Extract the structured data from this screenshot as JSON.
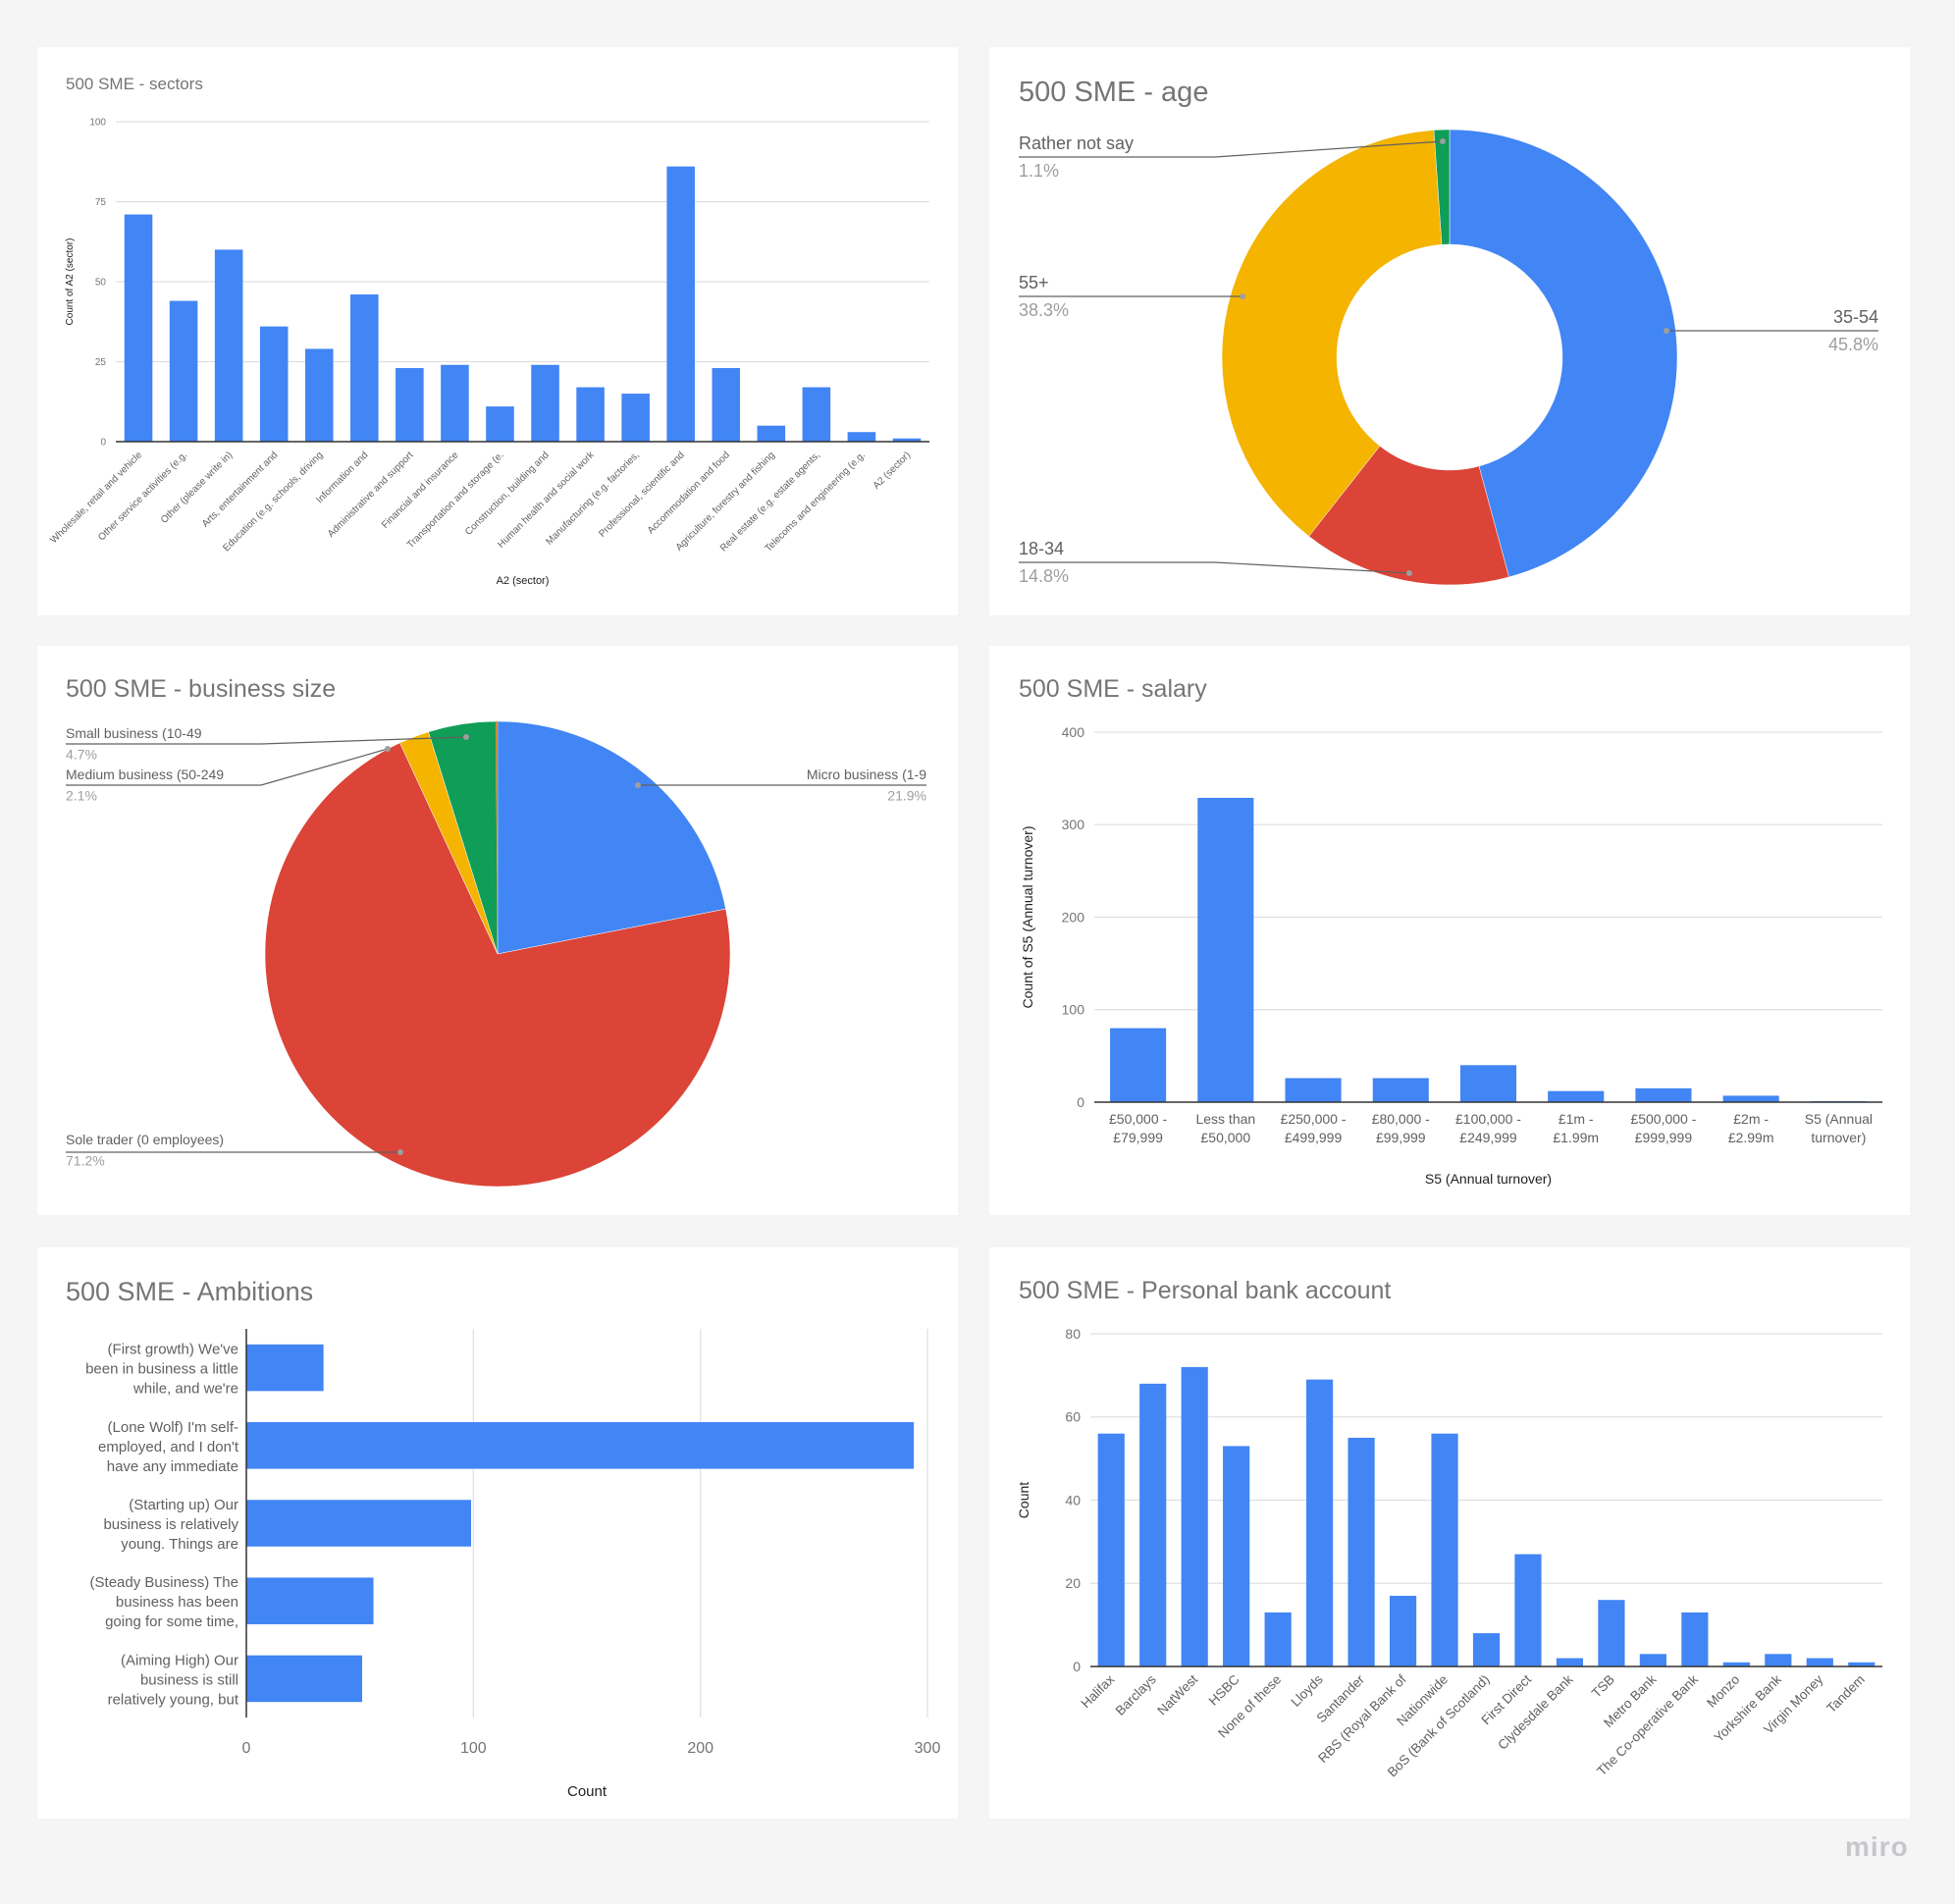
{
  "board": {
    "watermark": "miro"
  },
  "colors": {
    "blue": "#4285f4",
    "red": "#db4437",
    "yellow": "#f4b400",
    "green": "#0f9d58",
    "orange": "#ff6d00",
    "grid": "#e0e0e0",
    "axis": "#333333",
    "text": "#757575",
    "label": "#616161"
  },
  "chart_data": [
    {
      "id": "sectors",
      "type": "bar",
      "title": "500 SME - sectors",
      "xlabel": "A2 (sector)",
      "ylabel": "Count of A2 (sector)",
      "ylim": [
        0,
        100
      ],
      "yticks": [
        0,
        25,
        50,
        75,
        100
      ],
      "grid": true,
      "legend": "none",
      "categories": [
        "Wholesale, retail and vehicle",
        "Other service activities (e.g.",
        "Other (please write in)",
        "Arts, entertainment and",
        "Education (e.g. schools, driving",
        "Information and",
        "Administrative and support",
        "Financial and insurance",
        "Transportation and storage (e.",
        "Construction, building and",
        "Human health and social work",
        "Manufacturing (e.g. factories,",
        "Professional, scientific and",
        "Accommodation and food",
        "Agriculture, forestry and fishing",
        "Real estate (e.g. estate agents,",
        "Telecoms and engineering (e.g.",
        "A2 (sector)"
      ],
      "values": [
        71,
        44,
        60,
        36,
        29,
        46,
        23,
        24,
        11,
        24,
        17,
        15,
        86,
        23,
        5,
        17,
        3,
        1
      ]
    },
    {
      "id": "age",
      "type": "pie",
      "donut": true,
      "title": "500 SME - age",
      "categories": [
        "35-54",
        "18-34",
        "55+",
        "Rather not say"
      ],
      "values": [
        45.8,
        14.8,
        38.3,
        1.1
      ],
      "labels": [
        "45.8%",
        "14.8%",
        "38.3%",
        "1.1%"
      ],
      "legend": "labeled"
    },
    {
      "id": "business_size",
      "type": "pie",
      "title": "500 SME - business size",
      "categories": [
        "Micro business (1-9",
        "Sole trader (0 employees)",
        "Medium business (50-249",
        "Small business (10-49",
        ""
      ],
      "values": [
        21.9,
        71.2,
        2.1,
        4.7,
        0.1
      ],
      "labels": [
        "21.9%",
        "71.2%",
        "2.1%",
        "4.7%",
        ""
      ],
      "legend": "labeled"
    },
    {
      "id": "salary",
      "type": "bar",
      "title": "500 SME - salary",
      "xlabel": "S5 (Annual turnover)",
      "ylabel": "Count of S5 (Annual turnover)",
      "ylim": [
        0,
        400
      ],
      "yticks": [
        0,
        100,
        200,
        300,
        400
      ],
      "grid": true,
      "legend": "none",
      "categories": [
        "£50,000 - £79,999",
        "Less than £50,000",
        "£250,000 - £499,999",
        "£80,000 - £99,999",
        "£100,000 - £249,999",
        "£1m - £1.99m",
        "£500,000 - £999,999",
        "£2m - £2.99m",
        "S5 (Annual turnover)"
      ],
      "category_lines": [
        [
          "£50,000 -",
          "£79,999"
        ],
        [
          "Less than",
          "£50,000"
        ],
        [
          "£250,000 -",
          "£499,999"
        ],
        [
          "£80,000 -",
          "£99,999"
        ],
        [
          "£100,000 -",
          "£249,999"
        ],
        [
          "£1m -",
          "£1.99m"
        ],
        [
          "£500,000 -",
          "£999,999"
        ],
        [
          "£2m -",
          "£2.99m"
        ],
        [
          "S5 (Annual",
          "turnover)"
        ]
      ],
      "values": [
        80,
        329,
        26,
        26,
        40,
        12,
        15,
        7,
        1
      ]
    },
    {
      "id": "ambitions",
      "type": "bar",
      "orientation": "horizontal",
      "title": "500 SME - Ambitions",
      "xlabel": "Count",
      "ylabel": "",
      "xlim": [
        0,
        300
      ],
      "xticks": [
        0,
        100,
        200,
        300
      ],
      "grid": true,
      "legend": "none",
      "categories": [
        "(First growth) We've been in business a little while, and we're",
        "(Lone Wolf) I'm self-employed, and I don't have any immediate",
        "(Starting up) Our business is relatively young. Things are",
        "(Steady Business) The business has been going for some time,",
        "(Aiming High) Our business is still relatively young, but"
      ],
      "category_lines": [
        [
          "(First growth) We've",
          "been in business a little",
          "while, and we're"
        ],
        [
          "(Lone Wolf) I'm self-",
          "employed, and I don't",
          "have any immediate"
        ],
        [
          "(Starting up) Our",
          "business is relatively",
          "young. Things are"
        ],
        [
          "(Steady Business) The",
          "business has been",
          "going for some time,"
        ],
        [
          "(Aiming High) Our",
          "business is still",
          "relatively young, but"
        ]
      ],
      "values": [
        34,
        294,
        99,
        56,
        51
      ]
    },
    {
      "id": "bank",
      "type": "bar",
      "title": "500 SME - Personal bank account",
      "xlabel": "",
      "ylabel": "Count",
      "ylim": [
        0,
        80
      ],
      "yticks": [
        0,
        20,
        40,
        60,
        80
      ],
      "grid": true,
      "legend": "none",
      "categories": [
        "Halifax",
        "Barclays",
        "NatWest",
        "HSBC",
        "None of these",
        "Lloyds",
        "Santander",
        "RBS (Royal Bank of",
        "Nationwide",
        "BoS (Bank of Scotland)",
        "First Direct",
        "Clydesdale Bank",
        "TSB",
        "Metro Bank",
        "The Co-operative Bank",
        "Monzo",
        "Yorkshire Bank",
        "Virgin Money",
        "Tandem"
      ],
      "values": [
        56,
        68,
        72,
        53,
        13,
        69,
        55,
        17,
        56,
        8,
        27,
        2,
        16,
        3,
        13,
        1,
        3,
        2,
        1
      ]
    }
  ]
}
